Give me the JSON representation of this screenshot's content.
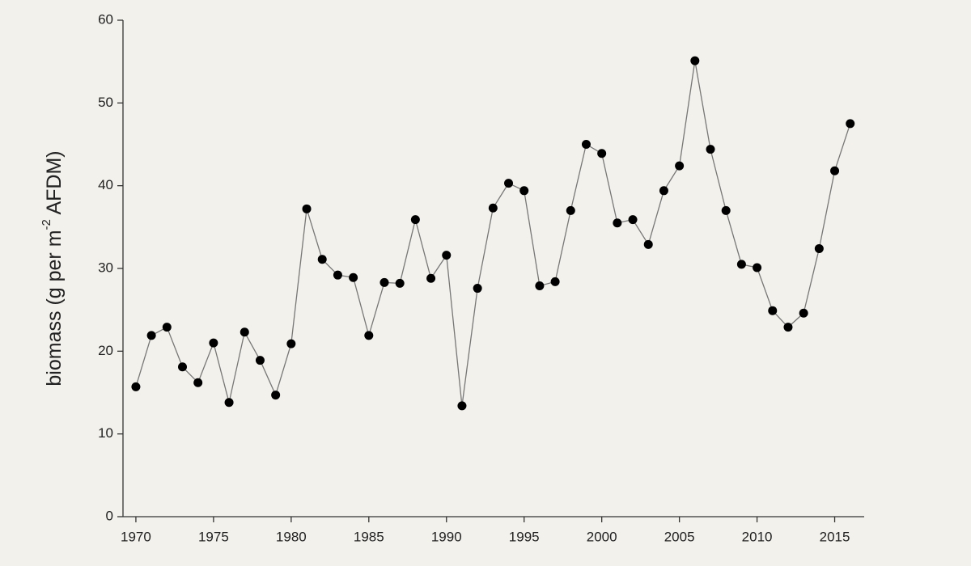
{
  "chart_data": {
    "type": "line",
    "ylabel": {
      "main": "biomass (g per m",
      "sup": "-2",
      "end": " AFDM)"
    },
    "x": [
      1970,
      1971,
      1972,
      1973,
      1974,
      1975,
      1976,
      1977,
      1978,
      1979,
      1980,
      1981,
      1982,
      1983,
      1984,
      1985,
      1986,
      1987,
      1988,
      1989,
      1990,
      1991,
      1992,
      1993,
      1994,
      1995,
      1996,
      1997,
      1998,
      1999,
      2000,
      2001,
      2002,
      2003,
      2004,
      2005,
      2006,
      2007,
      2008,
      2009,
      2010,
      2011,
      2012,
      2013,
      2014,
      2015,
      2016
    ],
    "series": [
      {
        "color": "#000000",
        "line_color": "#777777",
        "values": [
          15.7,
          21.9,
          22.9,
          18.1,
          16.2,
          21.0,
          13.8,
          22.3,
          18.9,
          14.7,
          20.9,
          37.2,
          31.1,
          29.2,
          28.9,
          21.9,
          28.3,
          28.2,
          35.9,
          28.8,
          31.6,
          13.4,
          27.6,
          37.3,
          40.3,
          39.4,
          27.9,
          28.4,
          37.0,
          45.0,
          43.9,
          35.5,
          35.9,
          32.9,
          39.4,
          42.4,
          55.1,
          44.4,
          37.0,
          30.5,
          30.1,
          24.9,
          22.9,
          24.6,
          32.4,
          41.8,
          47.5
        ]
      }
    ],
    "xlim": [
      1969.17,
      2016.9
    ],
    "xticks": [
      1970,
      1975,
      1980,
      1985,
      1990,
      1995,
      2000,
      2005,
      2010,
      2015
    ],
    "ylim": [
      0,
      60
    ],
    "yticks": [
      0,
      10,
      20,
      30,
      40,
      50,
      60
    ]
  }
}
